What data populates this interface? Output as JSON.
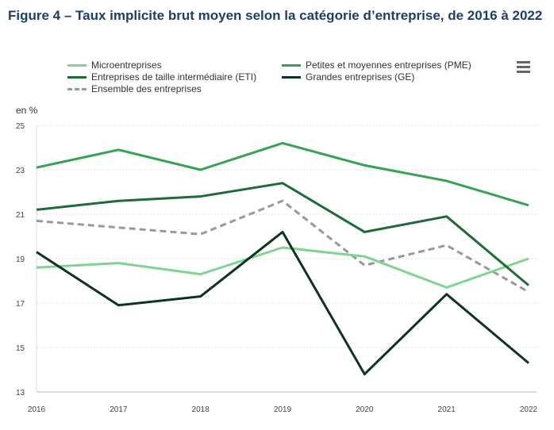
{
  "title": "Figure 4 – Taux implicite brut moyen selon la catégorie d’entreprise, de 2016 à 2022",
  "menu_icon": "hamburger-menu-icon",
  "chart_data": {
    "type": "line",
    "title": "Figure 4 – Taux implicite brut moyen selon la catégorie d’entreprise, de 2016 à 2022",
    "ylabel": "en %",
    "x": [
      2016,
      2017,
      2018,
      2019,
      2020,
      2021,
      2022
    ],
    "ylim": [
      13,
      25
    ],
    "yticks": [
      13,
      15,
      17,
      19,
      21,
      23,
      25
    ],
    "grid": true,
    "legend": "top",
    "series": [
      {
        "name": "Microentreprises",
        "color": "#7fd493",
        "dash": false,
        "values": [
          18.6,
          18.8,
          18.3,
          19.5,
          19.1,
          17.7,
          19.0
        ]
      },
      {
        "name": "Petites et moyennes entreprises (PME)",
        "color": "#36a253",
        "dash": false,
        "values": [
          23.1,
          23.9,
          23.0,
          24.2,
          23.2,
          22.5,
          21.4
        ]
      },
      {
        "name": "Entreprises de taille intermédiaire (ETI)",
        "color": "#1f6b35",
        "dash": false,
        "values": [
          21.2,
          21.6,
          21.8,
          22.4,
          20.2,
          20.9,
          17.8
        ]
      },
      {
        "name": "Grandes entreprises (GE)",
        "color": "#0e3320",
        "dash": false,
        "values": [
          19.3,
          16.9,
          17.3,
          20.2,
          13.8,
          17.4,
          14.3
        ]
      },
      {
        "name": "Ensemble des entreprises",
        "color": "#999999",
        "dash": true,
        "values": [
          20.7,
          20.4,
          20.1,
          21.6,
          18.7,
          19.6,
          17.5
        ]
      }
    ]
  }
}
